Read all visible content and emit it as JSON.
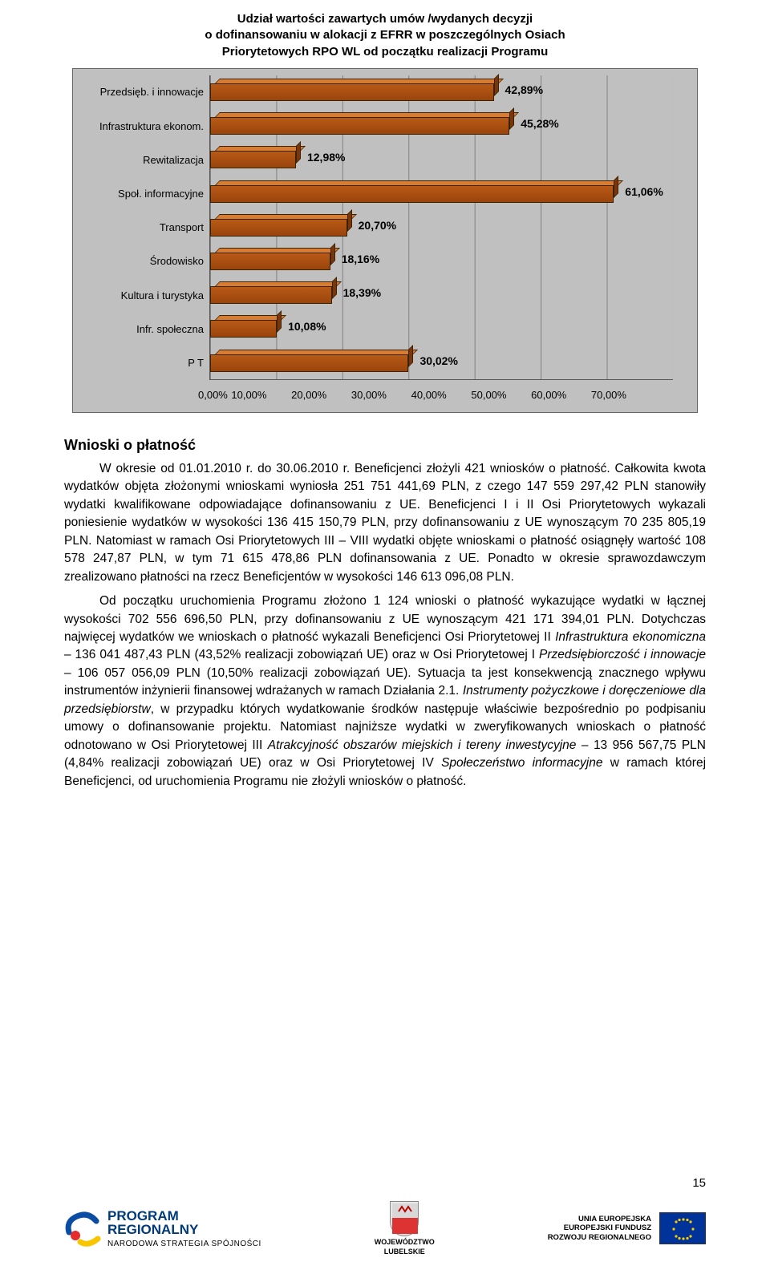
{
  "chart": {
    "type": "bar-horizontal-3d",
    "title": "Udział wartości zawartych umów /wydanych decyzji\no dofinansowaniu w alokacji z EFRR w poszczególnych Osiach\nPriorytetowych RPO WL od początku realizacji Programu",
    "xmax": 70,
    "xtick_step": 10,
    "xtick_labels": [
      "0,00%",
      "10,00%",
      "20,00%",
      "30,00%",
      "40,00%",
      "50,00%",
      "60,00%",
      "70,00%"
    ],
    "bar_color_front": "#a84a0f",
    "bar_color_top": "#d87b33",
    "bar_color_side": "#7a360a",
    "background_color": "#c0c0c0",
    "grid_color": "#808080",
    "label_fontsize": 13,
    "value_fontsize": 14,
    "series": [
      {
        "label": "Przedsięb. i innowacje",
        "value": 42.89,
        "value_label": "42,89%"
      },
      {
        "label": "Infrastruktura ekonom.",
        "value": 45.28,
        "value_label": "45,28%"
      },
      {
        "label": "Rewitalizacja",
        "value": 12.98,
        "value_label": "12,98%"
      },
      {
        "label": "Społ. informacyjne",
        "value": 61.06,
        "value_label": "61,06%"
      },
      {
        "label": "Transport",
        "value": 20.7,
        "value_label": "20,70%"
      },
      {
        "label": "Środowisko",
        "value": 18.16,
        "value_label": "18,16%"
      },
      {
        "label": "Kultura i turystyka",
        "value": 18.39,
        "value_label": "18,39%"
      },
      {
        "label": "Infr. społeczna",
        "value": 10.08,
        "value_label": "10,08%"
      },
      {
        "label": "P T",
        "value": 30.02,
        "value_label": "30,02%"
      }
    ]
  },
  "body": {
    "heading": "Wnioski o płatność",
    "p1a": "W okresie od 01.01.2010 r. do 30.06.2010 r. Beneficjenci złożyli 421 wniosków o płatność. Całkowita kwota wydatków objęta złożonymi wnioskami wyniosła 251 751 441,69 PLN, z czego 147 559 297,42 PLN stanowiły wydatki kwalifikowane odpowiadające dofinansowaniu z UE. Beneficjenci I i II Osi Priorytetowych wykazali poniesienie wydatków w wysokości 136 415 150,79 PLN, przy dofinansowaniu z UE wynoszącym 70 235 805,19 PLN. Natomiast w ramach Osi Priorytetowych III – VIII wydatki objęte wnioskami o płatność osiągnęły wartość 108 578 247,87 PLN, w tym 71 615 478,86 PLN dofinansowania z UE. Ponadto w okresie sprawozdawczym zrealizowano płatności na rzecz Beneficjentów w wysokości 146 613 096,08 PLN.",
    "p2_pre": "Od początku uruchomienia Programu złożono 1 124 wnioski o płatność wykazujące wydatki w łącznej wysokości 702 556 696,50 PLN, przy dofinansowaniu z UE wynoszącym 421 171 394,01 PLN. Dotychczas najwięcej wydatków we wnioskach o płatność wykazali Beneficjenci Osi Priorytetowej II ",
    "p2_i1": "Infrastruktura ekonomiczna",
    "p2_mid1": " – 136 041 487,43 PLN (43,52% realizacji zobowiązań UE) oraz w Osi Priorytetowej I ",
    "p2_i2": "Przedsiębiorczość i innowacje",
    "p2_mid2": " – 106 057 056,09 PLN (10,50% realizacji zobowiązań UE). Sytuacja ta jest konsekwencją znacznego wpływu instrumentów inżynierii finansowej wdrażanych w ramach Działania 2.1. ",
    "p2_i3": "Instrumenty pożyczkowe i doręczeniowe dla przedsiębiorstw",
    "p2_mid3": ", w przypadku których wydatkowanie środków następuje właściwie bezpośrednio po podpisaniu umowy o dofinansowanie projektu. Natomiast najniższe wydatki w zweryfikowanych wnioskach o płatność odnotowano w Osi Priorytetowej III ",
    "p2_i4": "Atrakcyjność obszarów miejskich i tereny inwestycyjne",
    "p2_mid4": " – 13 956 567,75 PLN (4,84% realizacji zobowiązań UE) oraz w Osi Priorytetowej IV ",
    "p2_i5": "Społeczeństwo informacyjne",
    "p2_end": " w ramach której Beneficjenci, od uruchomienia Programu nie złożyli wniosków o płatność."
  },
  "footer": {
    "program1": "PROGRAM",
    "program2": "REGIONALNY",
    "program_sub": "NARODOWA STRATEGIA SPÓJNOŚCI",
    "woj1": "WOJEWÓDZTWO",
    "woj2": "LUBELSKIE",
    "eu1": "UNIA EUROPEJSKA",
    "eu2": "EUROPEJSKI FUNDUSZ",
    "eu3": "ROZWOJU REGIONALNEGO",
    "page_num": "15"
  }
}
